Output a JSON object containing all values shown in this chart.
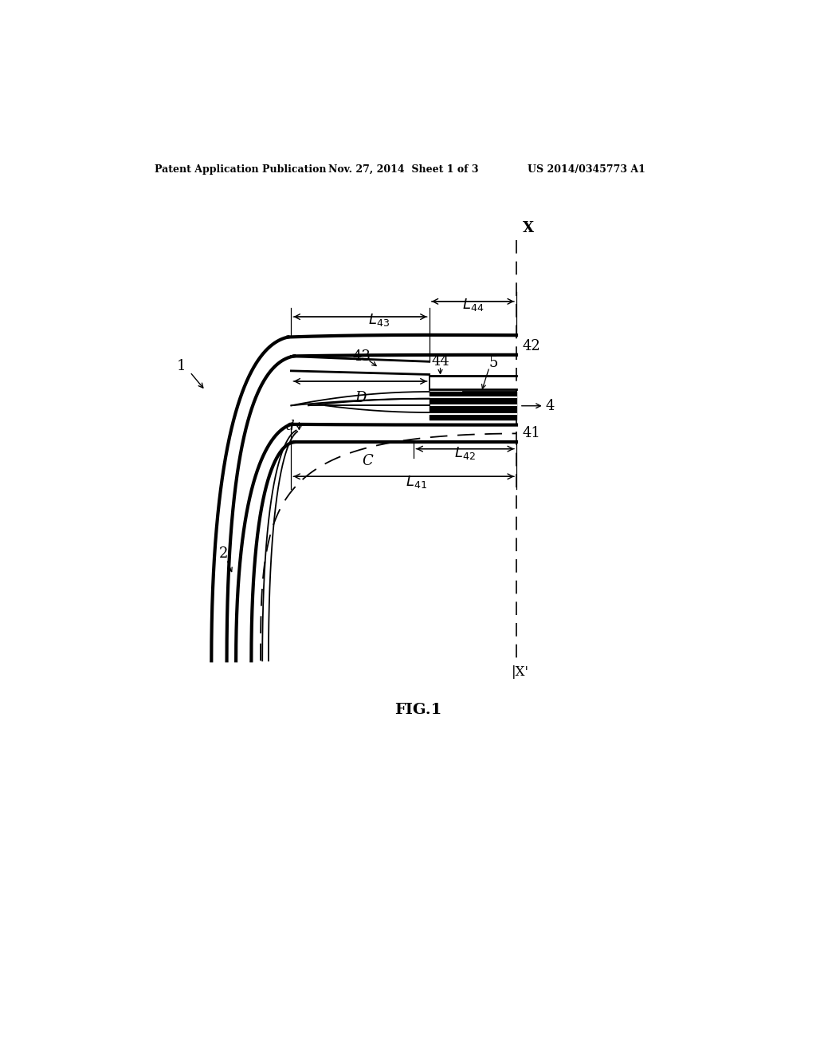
{
  "bg_color": "#ffffff",
  "fig_width": 10.24,
  "fig_height": 13.2,
  "header_text": "Patent Application Publication",
  "header_date": "Nov. 27, 2014  Sheet 1 of 3",
  "header_patent": "US 2014/0345773 A1",
  "figure_label": "FIG.1"
}
